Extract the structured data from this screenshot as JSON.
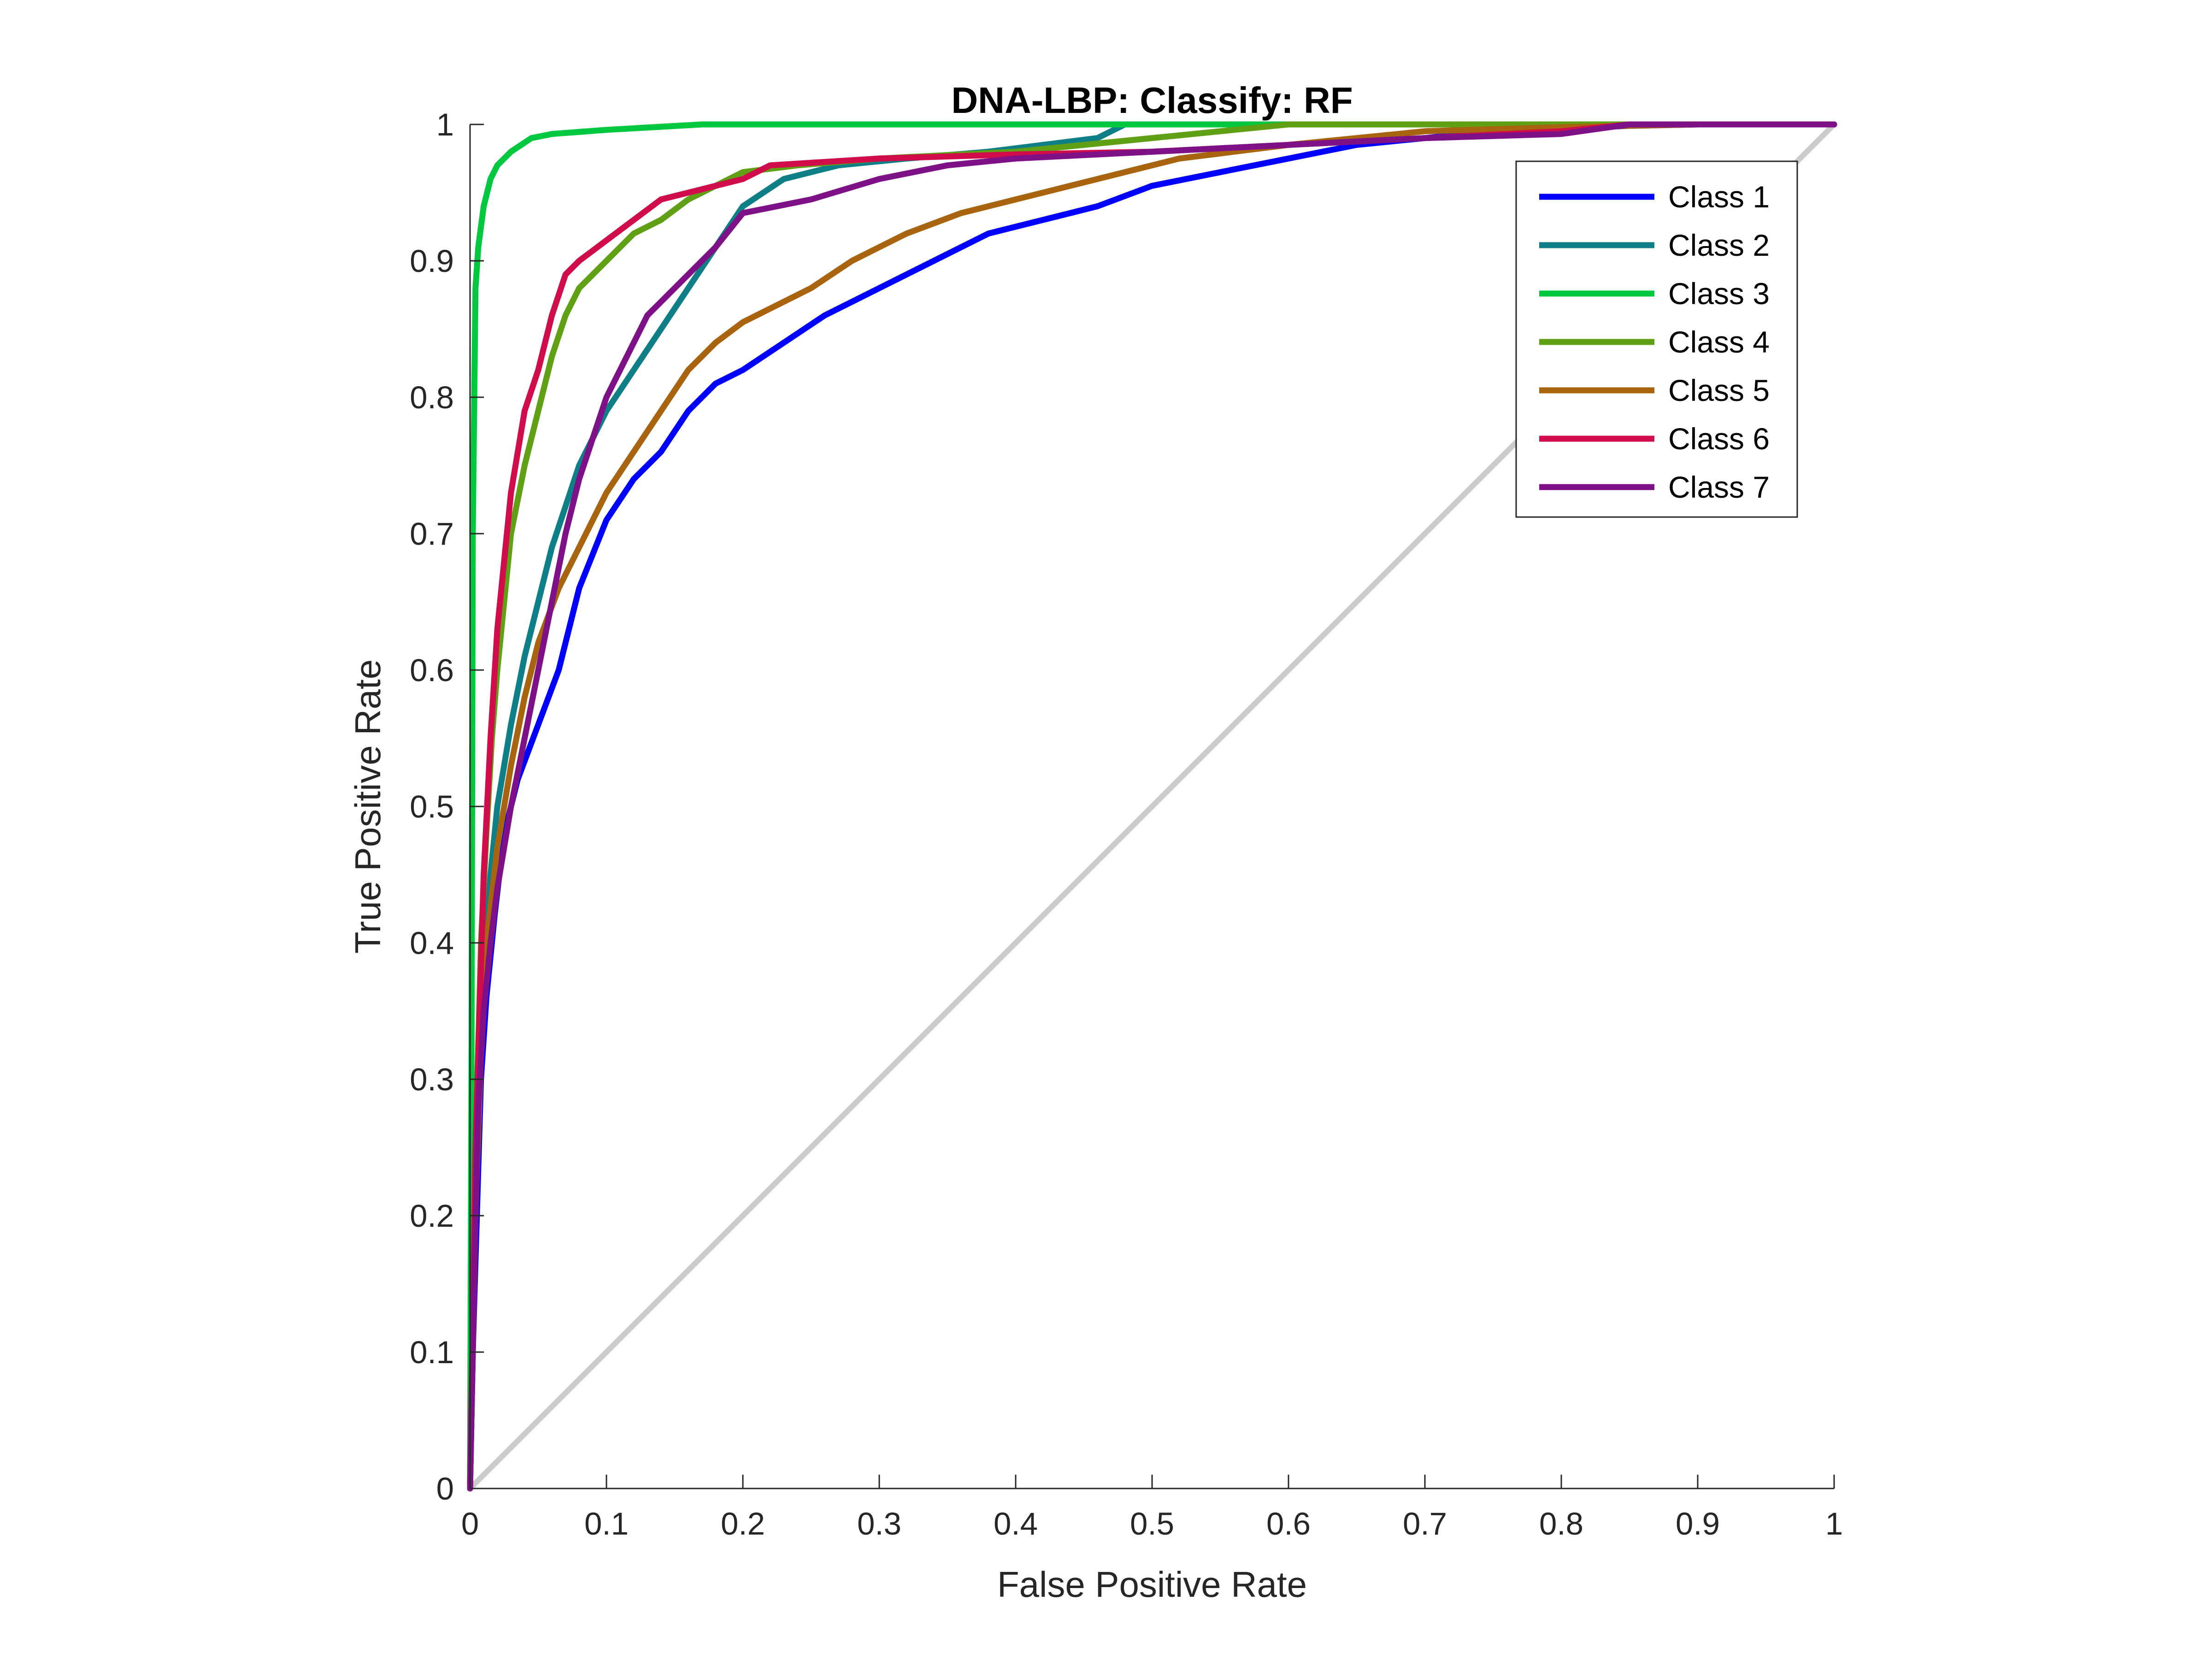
{
  "chart_data": {
    "type": "line",
    "title": "DNA-LBP: Classify: RF",
    "xlabel": "False Positive Rate",
    "ylabel": "True Positive Rate",
    "xlim": [
      0,
      1
    ],
    "ylim": [
      0,
      1
    ],
    "xticks": [
      0,
      0.1,
      0.2,
      0.3,
      0.4,
      0.5,
      0.6,
      0.7,
      0.8,
      0.9,
      1
    ],
    "yticks": [
      0,
      0.1,
      0.2,
      0.3,
      0.4,
      0.5,
      0.6,
      0.7,
      0.8,
      0.9,
      1
    ],
    "xtick_labels": [
      "0",
      "0.1",
      "0.2",
      "0.3",
      "0.4",
      "0.5",
      "0.6",
      "0.7",
      "0.8",
      "0.9",
      "1"
    ],
    "ytick_labels": [
      "0",
      "0.1",
      "0.2",
      "0.3",
      "0.4",
      "0.5",
      "0.6",
      "0.7",
      "0.8",
      "0.9",
      "1"
    ],
    "grid": false,
    "legend_position": "top-right",
    "reference_line": {
      "x": [
        0,
        1
      ],
      "y": [
        0,
        1
      ],
      "color": "#cccccc"
    },
    "series": [
      {
        "name": "Class 1",
        "color": "#0000ff",
        "x": [
          0,
          0.002,
          0.005,
          0.008,
          0.012,
          0.018,
          0.025,
          0.035,
          0.05,
          0.065,
          0.08,
          0.1,
          0.12,
          0.14,
          0.16,
          0.18,
          0.2,
          0.23,
          0.26,
          0.3,
          0.34,
          0.38,
          0.42,
          0.46,
          0.5,
          0.55,
          0.6,
          0.65,
          0.7,
          0.75,
          0.8,
          0.85,
          0.9,
          1
        ],
        "y": [
          0,
          0.1,
          0.2,
          0.3,
          0.36,
          0.42,
          0.48,
          0.52,
          0.56,
          0.6,
          0.66,
          0.71,
          0.74,
          0.76,
          0.79,
          0.81,
          0.82,
          0.84,
          0.86,
          0.88,
          0.9,
          0.92,
          0.93,
          0.94,
          0.955,
          0.965,
          0.975,
          0.985,
          0.99,
          0.995,
          0.997,
          0.999,
          1,
          1
        ]
      },
      {
        "name": "Class 2",
        "color": "#0e7f86",
        "x": [
          0,
          0.003,
          0.006,
          0.01,
          0.015,
          0.02,
          0.03,
          0.04,
          0.05,
          0.06,
          0.07,
          0.08,
          0.1,
          0.12,
          0.14,
          0.16,
          0.18,
          0.2,
          0.23,
          0.27,
          0.32,
          0.38,
          0.42,
          0.46,
          0.48,
          0.6,
          1
        ],
        "y": [
          0,
          0.15,
          0.28,
          0.38,
          0.45,
          0.5,
          0.56,
          0.61,
          0.65,
          0.69,
          0.72,
          0.75,
          0.79,
          0.82,
          0.85,
          0.88,
          0.91,
          0.94,
          0.96,
          0.97,
          0.975,
          0.98,
          0.985,
          0.99,
          1,
          1,
          1
        ]
      },
      {
        "name": "Class 3",
        "color": "#00c93f",
        "x": [
          0,
          0.001,
          0.002,
          0.004,
          0.006,
          0.01,
          0.015,
          0.02,
          0.03,
          0.045,
          0.06,
          0.1,
          0.17,
          0.2,
          1
        ],
        "y": [
          0,
          0.3,
          0.7,
          0.88,
          0.91,
          0.94,
          0.96,
          0.97,
          0.98,
          0.99,
          0.993,
          0.996,
          1,
          1,
          1
        ]
      },
      {
        "name": "Class 4",
        "color": "#5fa015",
        "x": [
          0,
          0.004,
          0.008,
          0.012,
          0.016,
          0.02,
          0.025,
          0.03,
          0.04,
          0.05,
          0.06,
          0.07,
          0.08,
          0.1,
          0.12,
          0.14,
          0.16,
          0.18,
          0.2,
          0.24,
          0.3,
          0.4,
          0.45,
          0.5,
          0.55,
          0.6,
          1
        ],
        "y": [
          0,
          0.25,
          0.4,
          0.48,
          0.55,
          0.6,
          0.65,
          0.7,
          0.75,
          0.79,
          0.83,
          0.86,
          0.88,
          0.9,
          0.92,
          0.93,
          0.945,
          0.955,
          0.965,
          0.97,
          0.975,
          0.98,
          0.985,
          0.99,
          0.995,
          1,
          1
        ]
      },
      {
        "name": "Class 5",
        "color": "#a8640e",
        "x": [
          0,
          0.004,
          0.008,
          0.012,
          0.02,
          0.03,
          0.04,
          0.05,
          0.065,
          0.08,
          0.1,
          0.12,
          0.14,
          0.16,
          0.18,
          0.2,
          0.22,
          0.25,
          0.28,
          0.32,
          0.36,
          0.4,
          0.44,
          0.48,
          0.52,
          0.56,
          0.6,
          0.65,
          0.7,
          0.8,
          0.9,
          1
        ],
        "y": [
          0,
          0.2,
          0.32,
          0.4,
          0.47,
          0.53,
          0.58,
          0.62,
          0.66,
          0.69,
          0.73,
          0.76,
          0.79,
          0.82,
          0.84,
          0.855,
          0.865,
          0.88,
          0.9,
          0.92,
          0.935,
          0.945,
          0.955,
          0.965,
          0.975,
          0.98,
          0.985,
          0.99,
          0.995,
          0.998,
          1,
          1
        ]
      },
      {
        "name": "Class 6",
        "color": "#d10c4a",
        "x": [
          0,
          0.002,
          0.004,
          0.007,
          0.01,
          0.015,
          0.02,
          0.025,
          0.03,
          0.04,
          0.05,
          0.06,
          0.07,
          0.08,
          0.1,
          0.12,
          0.14,
          0.16,
          0.2,
          0.22,
          0.3,
          0.4,
          0.5,
          0.6,
          0.7,
          0.8,
          0.85,
          1
        ],
        "y": [
          0,
          0.12,
          0.25,
          0.35,
          0.45,
          0.55,
          0.63,
          0.68,
          0.73,
          0.79,
          0.82,
          0.86,
          0.89,
          0.9,
          0.915,
          0.93,
          0.945,
          0.95,
          0.96,
          0.97,
          0.975,
          0.978,
          0.98,
          0.985,
          0.99,
          0.995,
          1,
          1
        ]
      },
      {
        "name": "Class 7",
        "color": "#7e1187",
        "x": [
          0,
          0.003,
          0.006,
          0.01,
          0.015,
          0.02,
          0.03,
          0.04,
          0.05,
          0.06,
          0.07,
          0.08,
          0.09,
          0.1,
          0.11,
          0.12,
          0.13,
          0.14,
          0.15,
          0.16,
          0.17,
          0.18,
          0.2,
          0.25,
          0.3,
          0.35,
          0.4,
          0.5,
          0.6,
          0.7,
          0.8,
          0.85,
          0.9,
          1
        ],
        "y": [
          0,
          0.15,
          0.28,
          0.35,
          0.4,
          0.44,
          0.5,
          0.55,
          0.6,
          0.65,
          0.7,
          0.74,
          0.77,
          0.8,
          0.82,
          0.84,
          0.86,
          0.87,
          0.88,
          0.89,
          0.9,
          0.91,
          0.935,
          0.945,
          0.96,
          0.97,
          0.975,
          0.98,
          0.985,
          0.99,
          0.993,
          1,
          1,
          1
        ]
      }
    ]
  }
}
